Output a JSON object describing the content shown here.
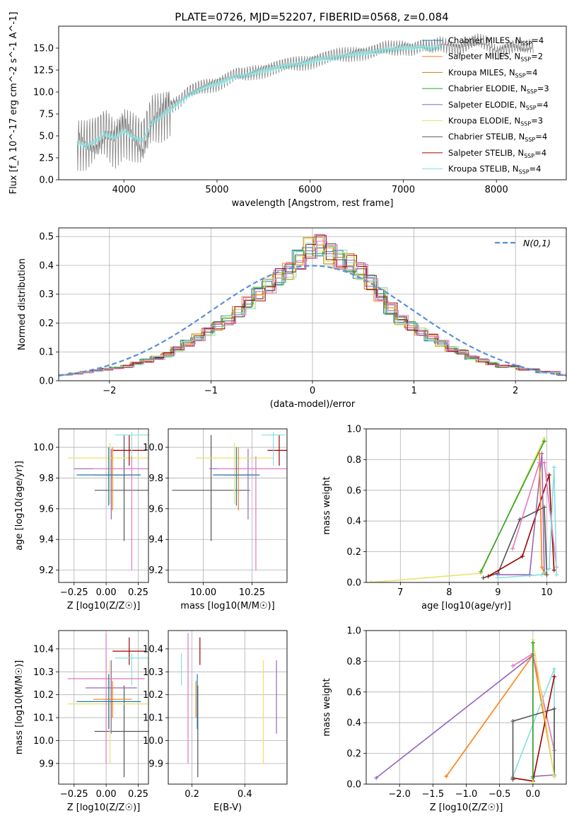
{
  "title": "PLATE=0726, MJD=52207, FIBERID=0568, z=0.084",
  "colors": {
    "data": "#808080",
    "Chabrier MILES": "#1f77b4",
    "Salpeter MILES": "#ff7f0e",
    "Kroupa MILES": "#b8860b",
    "Chabrier ELODIE": "#2ca02c",
    "Salpeter ELODIE": "#9467bd",
    "Kroupa ELODIE": "#e8e36a",
    "Chabrier STELIB": "#555555",
    "Salpeter STELIB": "#a00000",
    "Kroupa STELIB": "#86dede",
    "gaussian": "#5a8fd8",
    "extra_a": "#e377c2",
    "extra_b": "#bcbd22",
    "grid": "#b0b0b0"
  },
  "chart_data": [
    {
      "id": "spectrum",
      "type": "line",
      "xlabel": "wavelength [Angstrom, rest frame]",
      "ylabel": "Flux [f_λ 10^-17 erg cm^-2 s^-1 A^-1]",
      "xlim": [
        3300,
        8750
      ],
      "ylim": [
        0,
        17.5
      ],
      "xticks": [
        4000,
        5000,
        6000,
        7000,
        8000
      ],
      "yticks": [
        0.0,
        2.5,
        5.0,
        7.5,
        10.0,
        12.5,
        15.0
      ],
      "grid": false,
      "legend_position": "upper-right",
      "legend": [
        "Chabrier MILES, N_SSP=4",
        "Salpeter MILES, N_SSP=2",
        "Kroupa MILES, N_SSP=4",
        "Chabrier ELODIE, N_SSP=3",
        "Salpeter ELODIE, N_SSP=4",
        "Kroupa ELODIE, N_SSP=3",
        "Chabrier STELIB, N_SSP=4",
        "Salpeter STELIB, N_SSP=4",
        "Kroupa STELIB, N_SSP=4"
      ],
      "series": [
        {
          "name": "data",
          "x": [
            3500,
            3600,
            3700,
            3800,
            3900,
            4000,
            4100,
            4200,
            4300,
            4400,
            4500,
            4600,
            4700,
            4800,
            4900,
            5000,
            5100,
            5200,
            5300,
            5400,
            5500,
            5600,
            5700,
            5800,
            5900,
            6000,
            6100,
            6200,
            6300,
            6400,
            6500,
            6600,
            6700,
            6800,
            6900,
            7000,
            7100,
            7200,
            7300,
            7400,
            7500,
            7600,
            7700,
            7800,
            7900,
            8000,
            8100,
            8200,
            8300,
            8400
          ],
          "y": [
            4.5,
            4.0,
            4.5,
            5.5,
            4.5,
            6.0,
            5.0,
            4.0,
            7.0,
            7.5,
            8.5,
            9.0,
            10.0,
            10.5,
            10.8,
            11.0,
            11.5,
            12.0,
            12.0,
            12.3,
            12.5,
            12.8,
            13.0,
            13.2,
            13.3,
            13.5,
            13.8,
            14.0,
            14.2,
            14.3,
            14.5,
            14.5,
            14.7,
            15.0,
            15.0,
            15.2,
            15.0,
            15.3,
            15.0,
            15.5,
            15.2,
            15.0,
            15.5,
            15.8,
            15.5,
            14.5,
            15.0,
            15.3,
            15.0,
            15.2
          ]
        },
        {
          "name": "model",
          "x": [
            3500,
            3600,
            3700,
            3800,
            3900,
            4000,
            4100,
            4200,
            4300,
            4400,
            4500,
            4600,
            4700,
            4800,
            4900,
            5000,
            5100,
            5200,
            5300,
            5400,
            5500,
            5600,
            5700,
            5800,
            5900,
            6000,
            6100,
            6200,
            6300,
            6400,
            6500,
            6600,
            6700,
            6800,
            6900,
            7000,
            7100,
            7200,
            7300,
            7400
          ],
          "y": [
            4.2,
            3.8,
            4.5,
            5.2,
            4.8,
            5.5,
            4.8,
            4.5,
            6.5,
            7.2,
            8.0,
            8.8,
            9.6,
            10.2,
            10.6,
            10.9,
            11.3,
            11.8,
            11.9,
            12.1,
            12.4,
            12.6,
            12.9,
            13.1,
            13.2,
            13.4,
            13.7,
            13.8,
            14.0,
            14.2,
            14.3,
            14.4,
            14.6,
            14.8,
            14.9,
            15.0,
            15.0,
            15.1,
            15.0,
            15.2
          ]
        }
      ]
    },
    {
      "id": "residuals",
      "type": "histogram",
      "xlabel": "(data-model)/error",
      "ylabel": "Normed distribution",
      "xlim": [
        -2.5,
        2.5
      ],
      "ylim": [
        0,
        0.53
      ],
      "xticks": [
        -2,
        -1,
        0,
        1,
        2
      ],
      "yticks": [
        0.0,
        0.1,
        0.2,
        0.3,
        0.4,
        0.5
      ],
      "grid": true,
      "legend_position": "upper-right",
      "legend": [
        "N(0,1)"
      ],
      "bins_edges_step": 0.1,
      "bins_start": -2.5,
      "histogram_values": [
        0.02,
        0.025,
        0.03,
        0.035,
        0.04,
        0.045,
        0.05,
        0.06,
        0.07,
        0.08,
        0.09,
        0.11,
        0.13,
        0.15,
        0.17,
        0.19,
        0.21,
        0.24,
        0.27,
        0.3,
        0.33,
        0.36,
        0.38,
        0.42,
        0.46,
        0.47,
        0.44,
        0.42,
        0.41,
        0.38,
        0.34,
        0.3,
        0.25,
        0.21,
        0.19,
        0.17,
        0.15,
        0.13,
        0.11,
        0.1,
        0.08,
        0.07,
        0.06,
        0.05,
        0.05,
        0.04,
        0.04,
        0.03,
        0.03,
        0.02
      ]
    },
    {
      "id": "age_vs_Z",
      "type": "errorbar",
      "xlabel": "Z [log10(Z/Z☉)]",
      "ylabel": "age  [log10(age/yr)]",
      "xlim": [
        -0.37,
        0.33
      ],
      "ylim": [
        9.12,
        10.12
      ],
      "xticks": [
        -0.25,
        0.0,
        0.25
      ],
      "xtick_labels": [
        "−0.25",
        "0.00",
        "0.25"
      ],
      "yticks": [
        9.2,
        9.4,
        9.6,
        9.8,
        10.0
      ],
      "grid": true,
      "points": [
        {
          "x": 0.14,
          "y": 9.72,
          "xerr": 0.23,
          "yerr_lo": 0.33,
          "yerr_hi": 0.36,
          "color": "Chabrier STELIB"
        },
        {
          "x": 0.04,
          "y": 9.86,
          "xerr": 0.29,
          "yerr_lo": 0.33,
          "yerr_hi": 0.13,
          "color": "Salpeter ELODIE"
        },
        {
          "x": 0.03,
          "y": 9.93,
          "xerr": 0.33,
          "yerr_lo": 0.3,
          "yerr_hi": 0.1,
          "color": "Kroupa ELODIE"
        },
        {
          "x": 0.18,
          "y": 9.98,
          "xerr": 0.13,
          "yerr_lo": 0.1,
          "yerr_hi": 0.1,
          "color": "Salpeter STELIB"
        },
        {
          "x": 0.2,
          "y": 10.08,
          "xerr": 0.13,
          "yerr_lo": 0.2,
          "yerr_hi": 0.02,
          "color": "Kroupa STELIB"
        },
        {
          "x": 0.2,
          "y": 9.86,
          "xerr": 0.3,
          "yerr_lo": 0.66,
          "yerr_hi": 0.08,
          "color": "extra_a"
        },
        {
          "x": 0.05,
          "y": 9.82,
          "xerr": 0.15,
          "yerr_lo": 0.23,
          "yerr_hi": 0.18,
          "color": "Salpeter MILES"
        },
        {
          "x": 0.02,
          "y": 9.82,
          "xerr": 0.25,
          "yerr_lo": 0.2,
          "yerr_hi": 0.18,
          "color": "Chabrier MILES"
        }
      ]
    },
    {
      "id": "age_vs_mass",
      "type": "errorbar",
      "xlabel": "mass [log10(M/M☉)]",
      "xlim": [
        9.82,
        10.43
      ],
      "ylim": [
        9.12,
        10.12
      ],
      "xticks": [
        10.0,
        10.25
      ],
      "xtick_labels": [
        "10.00",
        "10.25"
      ],
      "yticks": [
        9.2,
        9.4,
        9.6,
        9.8,
        10.0
      ],
      "grid": true,
      "points": [
        {
          "x": 10.04,
          "y": 9.72,
          "xerr": 0.2,
          "yerr_lo": 0.33,
          "yerr_hi": 0.36,
          "color": "Chabrier STELIB"
        },
        {
          "x": 10.23,
          "y": 9.86,
          "xerr": 0.2,
          "yerr_lo": 0.33,
          "yerr_hi": 0.13,
          "color": "Salpeter ELODIE"
        },
        {
          "x": 10.16,
          "y": 9.93,
          "xerr": 0.2,
          "yerr_lo": 0.3,
          "yerr_hi": 0.1,
          "color": "Kroupa ELODIE"
        },
        {
          "x": 10.39,
          "y": 9.98,
          "xerr": 0.06,
          "yerr_lo": 0.1,
          "yerr_hi": 0.1,
          "color": "Salpeter STELIB"
        },
        {
          "x": 10.36,
          "y": 10.08,
          "xerr": 0.06,
          "yerr_lo": 0.2,
          "yerr_hi": 0.02,
          "color": "Kroupa STELIB"
        },
        {
          "x": 10.27,
          "y": 9.86,
          "xerr": 0.2,
          "yerr_lo": 0.66,
          "yerr_hi": 0.08,
          "color": "extra_a"
        },
        {
          "x": 10.18,
          "y": 9.82,
          "xerr": 0.08,
          "yerr_lo": 0.23,
          "yerr_hi": 0.18,
          "color": "Salpeter MILES"
        },
        {
          "x": 10.17,
          "y": 9.82,
          "xerr": 0.12,
          "yerr_lo": 0.2,
          "yerr_hi": 0.18,
          "color": "Chabrier MILES"
        }
      ]
    },
    {
      "id": "weight_vs_age",
      "type": "line",
      "xlabel": "age  [log10(age/yr)]",
      "ylabel": "mass weight",
      "xlim": [
        6.3,
        10.4
      ],
      "ylim": [
        0,
        1.0
      ],
      "xticks": [
        7,
        8,
        9,
        10
      ],
      "yticks": [
        0.0,
        0.2,
        0.4,
        0.6,
        0.8,
        1.0
      ],
      "grid": true,
      "series": [
        {
          "color": "Kroupa ELODIE",
          "x": [
            6.4,
            8.65,
            9.95
          ],
          "y": [
            0.0,
            0.06,
            0.94
          ]
        },
        {
          "color": "Chabrier ELODIE",
          "x": [
            8.65,
            9.95
          ],
          "y": [
            0.07,
            0.92
          ]
        },
        {
          "color": "Chabrier STELIB",
          "x": [
            8.7,
            9.0,
            9.45,
            9.95,
            10.0
          ],
          "y": [
            0.03,
            0.06,
            0.41,
            0.49,
            0.05
          ]
        },
        {
          "color": "Salpeter STELIB",
          "x": [
            8.8,
            9.5,
            10.05,
            10.15
          ],
          "y": [
            0.04,
            0.17,
            0.7,
            0.08
          ]
        },
        {
          "color": "Salpeter ELODIE",
          "x": [
            9.0,
            9.65,
            9.9,
            9.95
          ],
          "y": [
            0.05,
            0.05,
            0.84,
            0.06
          ]
        },
        {
          "color": "Salpeter MILES",
          "x": [
            9.85,
            9.9,
            9.95
          ],
          "y": [
            0.84,
            0.1,
            0.06
          ]
        },
        {
          "color": "extra_a",
          "x": [
            9.3,
            9.85,
            9.95,
            10.2
          ],
          "y": [
            0.22,
            0.78,
            0.78,
            0.1
          ]
        },
        {
          "color": "Kroupa STELIB",
          "x": [
            9.0,
            9.9,
            10.05,
            10.15,
            10.2
          ],
          "y": [
            0.03,
            0.05,
            0.09,
            0.75,
            0.05
          ]
        }
      ]
    },
    {
      "id": "mass_vs_Z",
      "type": "errorbar",
      "xlabel": "Z [log10(Z/Z☉)]",
      "ylabel": "mass [log10(M/M☉)]",
      "xlim": [
        -0.37,
        0.33
      ],
      "ylim": [
        9.81,
        10.48
      ],
      "xticks": [
        -0.25,
        0.0,
        0.25
      ],
      "xtick_labels": [
        "−0.25",
        "0.00",
        "0.25"
      ],
      "yticks": [
        9.9,
        10.0,
        10.1,
        10.2,
        10.3,
        10.4
      ],
      "grid": true,
      "points": [
        {
          "x": 0.14,
          "y": 10.04,
          "xerr": 0.23,
          "yerr_lo": 0.2,
          "yerr_hi": 0.2,
          "color": "Chabrier STELIB"
        },
        {
          "x": 0.03,
          "y": 10.16,
          "xerr": 0.33,
          "yerr_lo": 0.26,
          "yerr_hi": 0.19,
          "color": "Kroupa ELODIE"
        },
        {
          "x": 0.04,
          "y": 10.23,
          "xerr": 0.2,
          "yerr_lo": 0.2,
          "yerr_hi": 0.12,
          "color": "Salpeter ELODIE"
        },
        {
          "x": 0.18,
          "y": 10.39,
          "xerr": 0.13,
          "yerr_lo": 0.06,
          "yerr_hi": 0.06,
          "color": "Salpeter STELIB"
        },
        {
          "x": 0.2,
          "y": 10.36,
          "xerr": 0.13,
          "yerr_lo": 0.12,
          "yerr_hi": 0.02,
          "color": "Kroupa STELIB"
        },
        {
          "x": 0.0,
          "y": 10.27,
          "xerr": 0.3,
          "yerr_lo": 0.37,
          "yerr_hi": 0.2,
          "color": "extra_a"
        },
        {
          "x": 0.05,
          "y": 10.18,
          "xerr": 0.15,
          "yerr_lo": 0.08,
          "yerr_hi": 0.08,
          "color": "Salpeter MILES"
        },
        {
          "x": 0.02,
          "y": 10.17,
          "xerr": 0.25,
          "yerr_lo": 0.12,
          "yerr_hi": 0.12,
          "color": "Chabrier MILES"
        }
      ]
    },
    {
      "id": "mass_vs_ebv",
      "type": "errorbar",
      "xlabel": "E(B-V)",
      "xlim": [
        0.11,
        0.56
      ],
      "ylim": [
        9.81,
        10.48
      ],
      "xticks": [
        0.2,
        0.4
      ],
      "xtick_labels": [
        "0.2",
        "0.4"
      ],
      "yticks": [
        9.9,
        10.0,
        10.1,
        10.2,
        10.3,
        10.4
      ],
      "grid": true,
      "points": [
        {
          "x": 0.222,
          "y": 10.04,
          "yerr_lo": 0.2,
          "yerr_hi": 0.2,
          "color": "Chabrier STELIB"
        },
        {
          "x": 0.47,
          "y": 10.16,
          "yerr_lo": 0.26,
          "yerr_hi": 0.19,
          "color": "Kroupa ELODIE"
        },
        {
          "x": 0.52,
          "y": 10.23,
          "yerr_lo": 0.2,
          "yerr_hi": 0.12,
          "color": "Salpeter ELODIE"
        },
        {
          "x": 0.23,
          "y": 10.39,
          "yerr_lo": 0.06,
          "yerr_hi": 0.06,
          "color": "Salpeter STELIB"
        },
        {
          "x": 0.16,
          "y": 10.36,
          "yerr_lo": 0.12,
          "yerr_hi": 0.02,
          "color": "Kroupa STELIB"
        },
        {
          "x": 0.185,
          "y": 10.27,
          "yerr_lo": 0.37,
          "yerr_hi": 0.2,
          "color": "extra_a"
        },
        {
          "x": 0.215,
          "y": 10.18,
          "yerr_lo": 0.08,
          "yerr_hi": 0.08,
          "color": "Salpeter MILES"
        },
        {
          "x": 0.22,
          "y": 10.17,
          "yerr_lo": 0.12,
          "yerr_hi": 0.12,
          "color": "Chabrier MILES"
        }
      ]
    },
    {
      "id": "weight_vs_Z",
      "type": "line",
      "xlabel": "Z [log10(Z/Z☉)]",
      "ylabel": "mass weight",
      "xlim": [
        -2.5,
        0.5
      ],
      "ylim": [
        0,
        1.0
      ],
      "xticks": [
        -2.0,
        -1.5,
        -1.0,
        -0.5,
        0.0
      ],
      "xtick_labels": [
        "−2.0",
        "−1.5",
        "−1.0",
        "−0.5",
        "0.0"
      ],
      "yticks": [
        0.0,
        0.2,
        0.4,
        0.6,
        0.8,
        1.0
      ],
      "grid": true,
      "series": [
        {
          "color": "Salpeter ELODIE",
          "x": [
            -2.35,
            0.0,
            0.0,
            0.32
          ],
          "y": [
            0.04,
            0.84,
            0.05,
            0.06
          ]
        },
        {
          "color": "Salpeter MILES",
          "x": [
            -1.3,
            0.0,
            0.32
          ],
          "y": [
            0.05,
            0.84,
            0.06
          ]
        },
        {
          "color": "extra_a",
          "x": [
            -0.3,
            0.0,
            0.32
          ],
          "y": [
            0.77,
            0.85,
            0.22
          ]
        },
        {
          "color": "Kroupa STELIB",
          "x": [
            -0.3,
            0.32,
            0.32
          ],
          "y": [
            0.05,
            0.75,
            0.06
          ]
        },
        {
          "color": "Salpeter STELIB",
          "x": [
            -0.3,
            0.0,
            0.32
          ],
          "y": [
            0.04,
            0.02,
            0.7
          ]
        },
        {
          "color": "Chabrier STELIB",
          "x": [
            -0.3,
            -0.3,
            0.32,
            0.32
          ],
          "y": [
            0.03,
            0.41,
            0.49,
            0.05
          ]
        },
        {
          "color": "Kroupa ELODIE",
          "x": [
            0.0,
            0.0,
            0.32
          ],
          "y": [
            0.01,
            0.94,
            0.05
          ]
        },
        {
          "color": "Chabrier ELODIE",
          "x": [
            0.0,
            0.0
          ],
          "y": [
            0.04,
            0.92
          ]
        }
      ]
    }
  ]
}
